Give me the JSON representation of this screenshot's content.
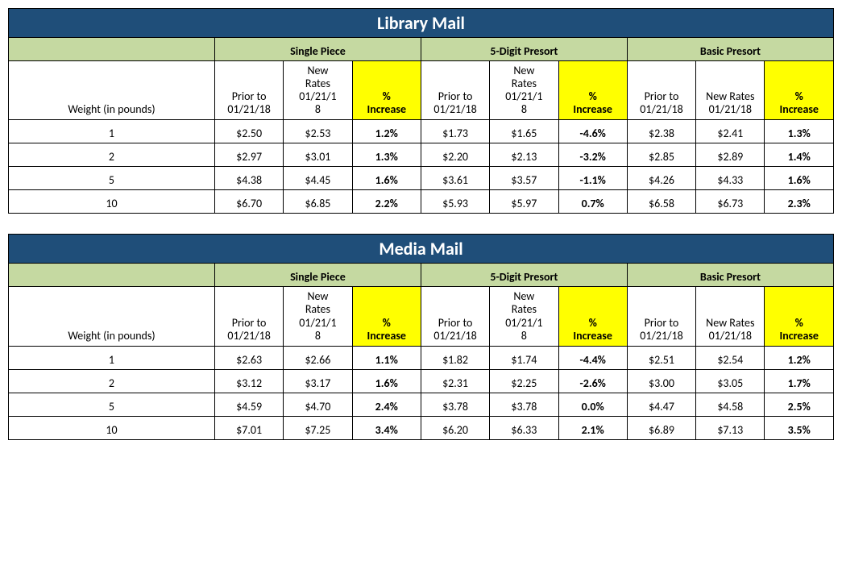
{
  "colors": {
    "title_bg": "#1f4e79",
    "title_text": "#ffffff",
    "group_bg": "#c5d9a1",
    "highlight_bg": "#ffff00",
    "border": "#000000",
    "cell_bg": "#ffffff"
  },
  "column_headers": {
    "weight": "Weight (in pounds)",
    "prior": "Prior to 01/21/18",
    "new_wrapped": "New Rates 01/21/18",
    "new_nowrap": "New Rates 01/21/18",
    "pct_line1": "%",
    "pct_line2": "Increase"
  },
  "groups": [
    "Single Piece",
    "5-Digit Presort",
    "Basic Presort"
  ],
  "tables": [
    {
      "title": "Library Mail",
      "rows": [
        {
          "w": "1",
          "sp_p": "$2.50",
          "sp_n": "$2.53",
          "sp_i": "1.2%",
          "d5_p": "$1.73",
          "d5_n": "$1.65",
          "d5_i": "-4.6%",
          "bp_p": "$2.38",
          "bp_n": "$2.41",
          "bp_i": "1.3%"
        },
        {
          "w": "2",
          "sp_p": "$2.97",
          "sp_n": "$3.01",
          "sp_i": "1.3%",
          "d5_p": "$2.20",
          "d5_n": "$2.13",
          "d5_i": "-3.2%",
          "bp_p": "$2.85",
          "bp_n": "$2.89",
          "bp_i": "1.4%"
        },
        {
          "w": "5",
          "sp_p": "$4.38",
          "sp_n": "$4.45",
          "sp_i": "1.6%",
          "d5_p": "$3.61",
          "d5_n": "$3.57",
          "d5_i": "-1.1%",
          "bp_p": "$4.26",
          "bp_n": "$4.33",
          "bp_i": "1.6%"
        },
        {
          "w": "10",
          "sp_p": "$6.70",
          "sp_n": "$6.85",
          "sp_i": "2.2%",
          "d5_p": "$5.93",
          "d5_n": "$5.97",
          "d5_i": "0.7%",
          "bp_p": "$6.58",
          "bp_n": "$6.73",
          "bp_i": "2.3%"
        }
      ]
    },
    {
      "title": "Media Mail",
      "rows": [
        {
          "w": "1",
          "sp_p": "$2.63",
          "sp_n": "$2.66",
          "sp_i": "1.1%",
          "d5_p": "$1.82",
          "d5_n": "$1.74",
          "d5_i": "-4.4%",
          "bp_p": "$2.51",
          "bp_n": "$2.54",
          "bp_i": "1.2%"
        },
        {
          "w": "2",
          "sp_p": "$3.12",
          "sp_n": "$3.17",
          "sp_i": "1.6%",
          "d5_p": "$2.31",
          "d5_n": "$2.25",
          "d5_i": "-2.6%",
          "bp_p": "$3.00",
          "bp_n": "$3.05",
          "bp_i": "1.7%"
        },
        {
          "w": "5",
          "sp_p": "$4.59",
          "sp_n": "$4.70",
          "sp_i": "2.4%",
          "d5_p": "$3.78",
          "d5_n": "$3.78",
          "d5_i": "0.0%",
          "bp_p": "$4.47",
          "bp_n": "$4.58",
          "bp_i": "2.5%"
        },
        {
          "w": "10",
          "sp_p": "$7.01",
          "sp_n": "$7.25",
          "sp_i": "3.4%",
          "d5_p": "$6.20",
          "d5_n": "$6.33",
          "d5_i": "2.1%",
          "bp_p": "$6.89",
          "bp_n": "$7.13",
          "bp_i": "3.5%"
        }
      ]
    }
  ]
}
